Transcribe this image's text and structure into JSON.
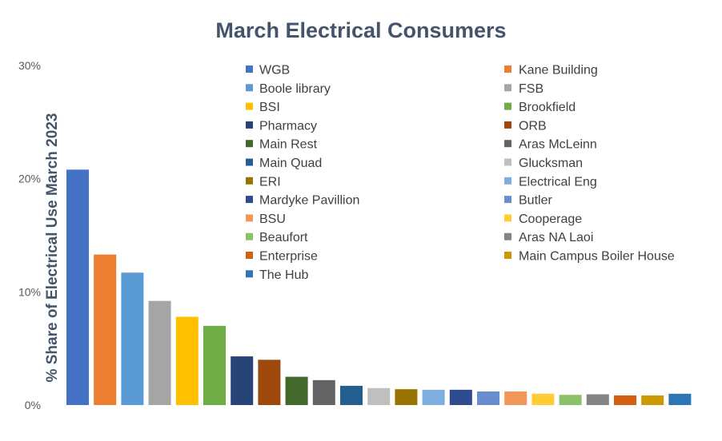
{
  "chart_data": {
    "type": "bar",
    "title": "March  Electrical Consumers",
    "xlabel": "",
    "ylabel": "% Share of  Electrical Use  March  2023",
    "ylim": [
      0,
      30
    ],
    "yticks": [
      "0%",
      "10%",
      "20%",
      "30%"
    ],
    "ytick_values": [
      0,
      10,
      20,
      30
    ],
    "grid": false,
    "legend_position": "top-right",
    "series": [
      {
        "name": "WGB",
        "value": 20.8,
        "color": "#4472c4"
      },
      {
        "name": "Kane Building",
        "value": 13.3,
        "color": "#ed7d31"
      },
      {
        "name": "Boole library",
        "value": 11.7,
        "color": "#5b9bd5"
      },
      {
        "name": "FSB",
        "value": 9.2,
        "color": "#a5a5a5"
      },
      {
        "name": "BSI",
        "value": 7.8,
        "color": "#ffc000"
      },
      {
        "name": "Brookfield",
        "value": 7.0,
        "color": "#70ad47"
      },
      {
        "name": "Pharmacy",
        "value": 4.3,
        "color": "#264478"
      },
      {
        "name": "ORB",
        "value": 4.0,
        "color": "#9e480e"
      },
      {
        "name": "Main Rest",
        "value": 2.5,
        "color": "#43682b"
      },
      {
        "name": "Aras McLeinn",
        "value": 2.2,
        "color": "#636363"
      },
      {
        "name": "Main Quad",
        "value": 1.7,
        "color": "#255e91"
      },
      {
        "name": "Glucksman",
        "value": 1.5,
        "color": "#bfbfbf"
      },
      {
        "name": "ERI",
        "value": 1.4,
        "color": "#997300"
      },
      {
        "name": "Electrical Eng",
        "value": 1.35,
        "color": "#7cafdd"
      },
      {
        "name": "Mardyke Pavillion",
        "value": 1.35,
        "color": "#2f4b8f"
      },
      {
        "name": "Butler",
        "value": 1.2,
        "color": "#698ed0"
      },
      {
        "name": "BSU",
        "value": 1.2,
        "color": "#f1975a"
      },
      {
        "name": "Cooperage",
        "value": 1.0,
        "color": "#ffcd33"
      },
      {
        "name": "Beaufort",
        "value": 0.9,
        "color": "#8cc168"
      },
      {
        "name": "Aras NA Laoi",
        "value": 0.95,
        "color": "#848484"
      },
      {
        "name": "Enterprise",
        "value": 0.85,
        "color": "#d26012"
      },
      {
        "name": "Main Campus Boiler House",
        "value": 0.85,
        "color": "#cc9a00"
      },
      {
        "name": "The Hub",
        "value": 1.0,
        "color": "#2e75b6"
      }
    ],
    "legend_left": [
      "WGB",
      "Boole library",
      "BSI",
      "Pharmacy",
      "Main Rest",
      "Main Quad",
      "ERI",
      "Mardyke Pavillion",
      "BSU",
      "Beaufort",
      "Enterprise",
      "The Hub"
    ],
    "legend_right": [
      "Kane Building",
      "FSB",
      "Brookfield",
      "ORB",
      "Aras McLeinn",
      "Glucksman",
      "Electrical Eng",
      "Butler",
      "Cooperage",
      "Aras NA Laoi",
      "Main Campus Boiler House"
    ]
  }
}
